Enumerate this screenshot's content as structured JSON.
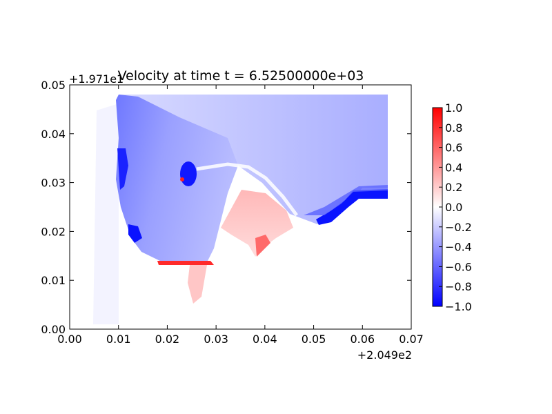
{
  "chart_data": {
    "type": "heatmap",
    "title": "Velocity at time t = 6.52500000e+03",
    "xlabel": "",
    "ylabel": "",
    "xlim": [
      0.0,
      0.07
    ],
    "ylim": [
      0.0,
      0.05
    ],
    "x_ticks": [
      "0.00",
      "0.01",
      "0.02",
      "0.03",
      "0.04",
      "0.05",
      "0.06",
      "0.07"
    ],
    "y_ticks": [
      "0.00",
      "0.01",
      "0.02",
      "0.03",
      "0.04",
      "0.05"
    ],
    "x_offset_label": "+2.049e2",
    "y_offset_label": "+1.971e1",
    "colormap": "bwr",
    "colorbar": {
      "range": [
        -1.0,
        1.0
      ],
      "ticks": [
        "1.0",
        "0.8",
        "0.6",
        "0.4",
        "0.2",
        "0.0",
        "−0.2",
        "−0.4",
        "−0.6",
        "−0.8",
        "−1.0"
      ],
      "colors": [
        "#0000ff",
        "#ffffff",
        "#ff0000"
      ]
    },
    "grid": false,
    "features": [
      {
        "kind": "ocean-region",
        "description_value": -0.2
      },
      {
        "kind": "strong-negative-coast",
        "value": -1.0
      },
      {
        "kind": "positive-plume",
        "value": 0.4
      }
    ]
  }
}
